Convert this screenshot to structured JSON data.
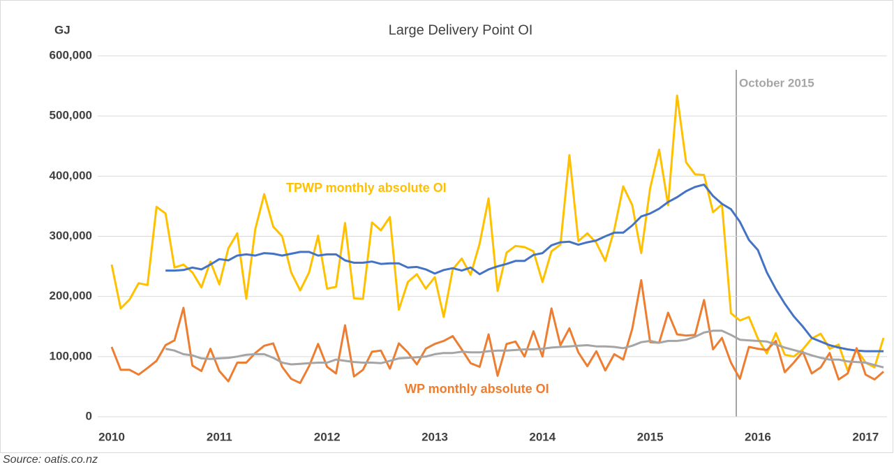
{
  "chart_data": {
    "type": "line",
    "title": "Large Delivery Point OI",
    "y_label": "GJ",
    "annotation": "October 2015",
    "source": "Source:  oatis.co.nz",
    "categories": [
      "2010",
      null,
      null,
      null,
      null,
      null,
      null,
      null,
      null,
      null,
      null,
      null,
      "2011",
      null,
      null,
      null,
      null,
      null,
      null,
      null,
      null,
      null,
      null,
      null,
      "2012",
      null,
      null,
      null,
      null,
      null,
      null,
      null,
      null,
      null,
      null,
      null,
      "2013",
      null,
      null,
      null,
      null,
      null,
      null,
      null,
      null,
      null,
      null,
      null,
      "2014",
      null,
      null,
      null,
      null,
      null,
      null,
      null,
      null,
      null,
      null,
      null,
      "2015",
      null,
      null,
      null,
      null,
      null,
      null,
      null,
      null,
      null,
      null,
      null,
      "2016",
      null,
      null,
      null,
      null,
      null,
      null,
      null,
      null,
      null,
      null,
      null,
      "2017",
      null,
      null
    ],
    "series": [
      {
        "name": "TPWP monthly absolute OI",
        "color": "#FFC000",
        "values": [
          253000,
          180000,
          195000,
          222000,
          219000,
          349000,
          338000,
          248000,
          253000,
          240000,
          215000,
          258000,
          220000,
          280000,
          305000,
          196000,
          312000,
          370000,
          316000,
          300000,
          240000,
          210000,
          240000,
          301000,
          213000,
          216000,
          322000,
          197000,
          196000,
          323000,
          310000,
          332000,
          178000,
          224000,
          237000,
          213000,
          232000,
          166000,
          245000,
          263000,
          236000,
          288000,
          363000,
          209000,
          273000,
          284000,
          282000,
          275000,
          224000,
          275000,
          286000,
          435000,
          292000,
          305000,
          289000,
          259000,
          311000,
          383000,
          352000,
          272000,
          380000,
          444000,
          352000,
          534000,
          423000,
          403000,
          402000,
          340000,
          353000,
          172000,
          160000,
          166000,
          130000,
          105000,
          139000,
          103000,
          100000,
          112000,
          130000,
          138000,
          113000,
          120000,
          77000,
          112000,
          90000,
          82000,
          131000
        ]
      },
      {
        "color": "#4472C4",
        "values": [
          null,
          null,
          null,
          null,
          null,
          null,
          243000,
          243000,
          244000,
          248000,
          245000,
          253000,
          262000,
          260000,
          268000,
          270000,
          268000,
          272000,
          271000,
          268000,
          271000,
          274000,
          274000,
          268000,
          270000,
          270000,
          260000,
          256000,
          256000,
          258000,
          254000,
          255000,
          255000,
          248000,
          249000,
          245000,
          238000,
          244000,
          247000,
          243000,
          248000,
          237000,
          245000,
          250000,
          254000,
          259000,
          259000,
          269000,
          272000,
          285000,
          290000,
          291000,
          286000,
          290000,
          293000,
          300000,
          306000,
          306000,
          318000,
          333000,
          338000,
          346000,
          357000,
          365000,
          375000,
          382000,
          386000,
          367000,
          354000,
          345000,
          324000,
          294000,
          277000,
          240000,
          212000,
          188000,
          167000,
          150000,
          131000,
          125000,
          119000,
          115000,
          112000,
          110000,
          109000,
          109000,
          109000
        ]
      },
      {
        "name": "WP monthly absolute OI",
        "color": "#ED7D31",
        "values": [
          116000,
          78000,
          78000,
          70000,
          81000,
          93000,
          119000,
          127000,
          181000,
          85000,
          76000,
          113000,
          76000,
          59000,
          90000,
          90000,
          106000,
          118000,
          122000,
          83000,
          63000,
          56000,
          84000,
          121000,
          83000,
          72000,
          152000,
          67000,
          78000,
          108000,
          110000,
          80000,
          122000,
          107000,
          87000,
          113000,
          121000,
          126000,
          134000,
          112000,
          89000,
          83000,
          137000,
          68000,
          121000,
          125000,
          100000,
          142000,
          100000,
          180000,
          119000,
          147000,
          107000,
          84000,
          109000,
          77000,
          104000,
          95000,
          146000,
          227000,
          124000,
          123000,
          173000,
          137000,
          135000,
          136000,
          194000,
          112000,
          131000,
          90000,
          63000,
          116000,
          113000,
          111000,
          126000,
          74000,
          90000,
          108000,
          72000,
          82000,
          106000,
          62000,
          72000,
          114000,
          70000,
          62000,
          75000
        ]
      },
      {
        "color": "#A5A5A5",
        "values": [
          null,
          null,
          null,
          null,
          null,
          null,
          113000,
          110000,
          104000,
          102000,
          97000,
          96000,
          97000,
          98000,
          100000,
          103000,
          104000,
          104000,
          98000,
          90000,
          87000,
          88000,
          89000,
          90000,
          90000,
          95000,
          93000,
          91000,
          90000,
          90000,
          89000,
          93000,
          97000,
          98000,
          99000,
          100000,
          104000,
          106000,
          106000,
          108000,
          107000,
          107000,
          109000,
          110000,
          110000,
          111000,
          112000,
          112000,
          113000,
          115000,
          116000,
          117000,
          118000,
          119000,
          117000,
          117000,
          116000,
          114000,
          118000,
          124000,
          126000,
          123000,
          126000,
          126000,
          128000,
          133000,
          140000,
          143000,
          143000,
          136000,
          128000,
          127000,
          126000,
          125000,
          120000,
          115000,
          111000,
          107000,
          102000,
          98000,
          95000,
          95000,
          92000,
          91000,
          90000,
          86000,
          82000
        ]
      }
    ],
    "ylim": [
      0,
      600000
    ],
    "yticks": [
      0,
      {
        "value": 100000,
        "label": "100,000"
      },
      {
        "value": 200000,
        "label": "200,000"
      },
      {
        "value": 300000,
        "label": "300,000"
      },
      {
        "value": 400000,
        "label": "400,000"
      },
      {
        "value": 500000,
        "label": "500,000"
      },
      {
        "value": 600000,
        "label": "600,000"
      }
    ],
    "grid": true
  }
}
